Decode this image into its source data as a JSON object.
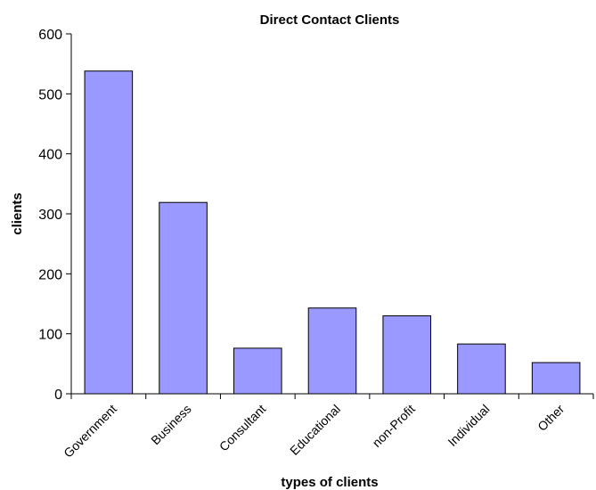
{
  "chart_data": {
    "type": "bar",
    "title": "Direct Contact Clients",
    "xlabel": "types of clients",
    "ylabel": "clients",
    "categories": [
      "Government",
      "Business",
      "Consultant",
      "Educational",
      "non-Profit",
      "Individual",
      "Other"
    ],
    "values": [
      538,
      319,
      76,
      143,
      130,
      83,
      52
    ],
    "ylim": [
      0,
      600
    ],
    "yticks": [
      0,
      100,
      200,
      300,
      400,
      500,
      600
    ],
    "grid": false,
    "legend": "none",
    "bar_color": "#9999ff"
  }
}
